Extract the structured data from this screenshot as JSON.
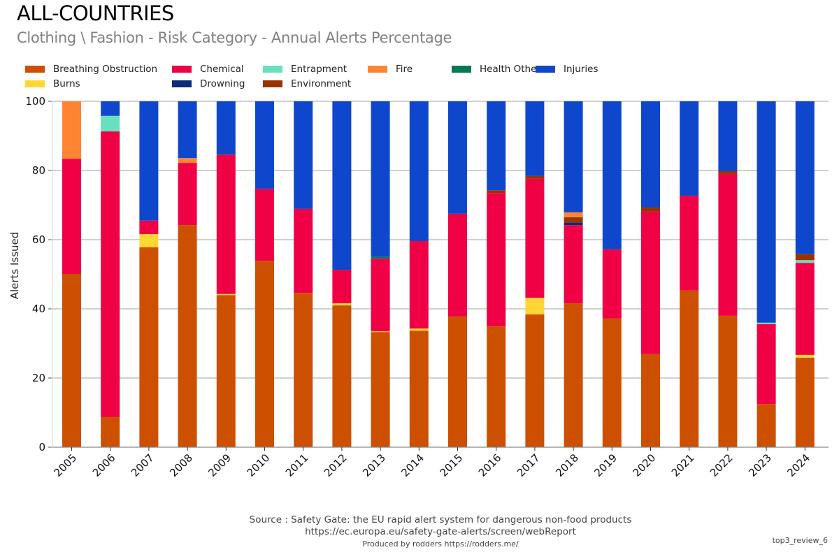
{
  "header": {
    "title": "ALL-COUNTRIES",
    "subtitle": "Clothing \\ Fashion - Risk Category - Annual Alerts Percentage"
  },
  "legend": [
    {
      "name": "Breathing Obstruction",
      "color": "#cc5000"
    },
    {
      "name": "Burns",
      "color": "#ffd633"
    },
    {
      "name": "Chemical",
      "color": "#f00044"
    },
    {
      "name": "Drowning",
      "color": "#0a2a7a"
    },
    {
      "name": "Entrapment",
      "color": "#66e0bf"
    },
    {
      "name": "Environment",
      "color": "#993300"
    },
    {
      "name": "Fire",
      "color": "#ff8533"
    },
    {
      "name": "Health Other",
      "color": "#007a55"
    },
    {
      "name": "Injuries",
      "color": "#0f47cc"
    }
  ],
  "chart_data": {
    "type": "bar",
    "stacked": true,
    "title": "ALL-COUNTRIES",
    "subtitle": "Clothing \\ Fashion - Risk Category - Annual Alerts Percentage",
    "xlabel": "",
    "ylabel": "Alerts Issued",
    "ylim": [
      0,
      100
    ],
    "yticks": [
      0,
      20,
      40,
      60,
      80,
      100
    ],
    "grid": true,
    "legend_position": "top-left",
    "categories": [
      "2005",
      "2006",
      "2007",
      "2008",
      "2009",
      "2010",
      "2011",
      "2012",
      "2013",
      "2014",
      "2015",
      "2016",
      "2017",
      "2018",
      "2019",
      "2020",
      "2021",
      "2022",
      "2023",
      "2024"
    ],
    "series": [
      {
        "name": "Breathing Obstruction",
        "color": "#cc5000",
        "values": [
          50.1,
          8.7,
          57.8,
          64.2,
          44.0,
          53.9,
          44.6,
          41.0,
          33.3,
          33.7,
          37.8,
          34.9,
          38.4,
          41.6,
          37.2,
          26.9,
          45.3,
          38.0,
          12.5,
          25.9
        ]
      },
      {
        "name": "Burns",
        "color": "#ffd633",
        "values": [
          0,
          0,
          3.8,
          0,
          0.3,
          0,
          0,
          0.6,
          0.2,
          0.6,
          0,
          0,
          4.8,
          0,
          0,
          0,
          0,
          0,
          0,
          0.8
        ]
      },
      {
        "name": "Chemical",
        "color": "#f00044",
        "values": [
          33.3,
          82.6,
          3.9,
          18.0,
          40.3,
          20.8,
          24.3,
          9.7,
          21.0,
          25.3,
          29.7,
          38.6,
          34.4,
          22.6,
          20.0,
          41.2,
          27.4,
          41.0,
          23.1,
          26.6
        ]
      },
      {
        "name": "Drowning",
        "color": "#0a2a7a",
        "values": [
          0,
          0,
          0,
          0,
          0,
          0,
          0,
          0,
          0,
          0,
          0,
          0,
          0,
          0.8,
          0,
          0,
          0,
          0,
          0,
          0
        ]
      },
      {
        "name": "Entrapment",
        "color": "#66e0bf",
        "values": [
          0,
          4.5,
          0,
          0,
          0,
          0,
          0,
          0,
          0,
          0,
          0,
          0,
          0,
          0,
          0,
          0,
          0,
          0,
          0.4,
          0.8
        ]
      },
      {
        "name": "Environment",
        "color": "#993300",
        "values": [
          0,
          0,
          0,
          0,
          0,
          0,
          0,
          0,
          0,
          0,
          0,
          0.8,
          0.8,
          1.5,
          0,
          1.2,
          0,
          0.8,
          0,
          1.7
        ]
      },
      {
        "name": "Fire",
        "color": "#ff8533",
        "values": [
          16.6,
          0,
          0,
          1.4,
          0,
          0,
          0,
          0,
          0,
          0,
          0,
          0,
          0,
          1.4,
          0,
          0,
          0,
          0,
          0,
          0
        ]
      },
      {
        "name": "Health Other",
        "color": "#007a55",
        "values": [
          0,
          0,
          0,
          0,
          0,
          0,
          0,
          0,
          0.5,
          0,
          0,
          0,
          0,
          0,
          0,
          0,
          0,
          0,
          0,
          0
        ]
      },
      {
        "name": "Injuries",
        "color": "#0f47cc",
        "values": [
          0,
          4.2,
          34.5,
          16.4,
          15.4,
          25.3,
          31.1,
          48.7,
          45.0,
          40.4,
          32.5,
          25.7,
          21.6,
          32.1,
          42.8,
          30.7,
          27.3,
          20.2,
          64.0,
          44.2
        ]
      }
    ]
  },
  "footer": {
    "source": "Source : Safety Gate: the EU rapid alert system for dangerous non-food products",
    "url": "https://ec.europa.eu/safety-gate-alerts/screen/webReport",
    "produced_by": "Produced by rodders https://rodders.me/",
    "tag": "top3_review_6"
  }
}
